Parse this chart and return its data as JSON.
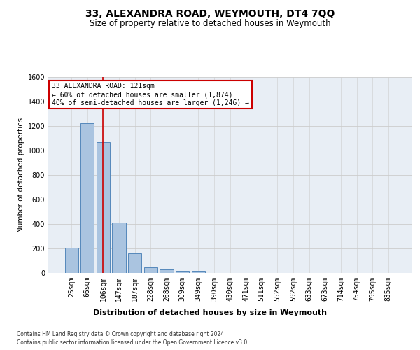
{
  "title": "33, ALEXANDRA ROAD, WEYMOUTH, DT4 7QQ",
  "subtitle": "Size of property relative to detached houses in Weymouth",
  "xlabel": "Distribution of detached houses by size in Weymouth",
  "ylabel": "Number of detached properties",
  "footer_line1": "Contains HM Land Registry data © Crown copyright and database right 2024.",
  "footer_line2": "Contains public sector information licensed under the Open Government Licence v3.0.",
  "categories": [
    "25sqm",
    "66sqm",
    "106sqm",
    "147sqm",
    "187sqm",
    "228sqm",
    "268sqm",
    "309sqm",
    "349sqm",
    "390sqm",
    "430sqm",
    "471sqm",
    "511sqm",
    "552sqm",
    "592sqm",
    "633sqm",
    "673sqm",
    "714sqm",
    "754sqm",
    "795sqm",
    "835sqm"
  ],
  "values": [
    205,
    1225,
    1070,
    410,
    160,
    45,
    27,
    18,
    15,
    0,
    0,
    0,
    0,
    0,
    0,
    0,
    0,
    0,
    0,
    0,
    0
  ],
  "bar_color": "#aac4e0",
  "bar_edge_color": "#5588bb",
  "grid_color": "#cccccc",
  "background_color": "#e8eef5",
  "ylim": [
    0,
    1600
  ],
  "yticks": [
    0,
    200,
    400,
    600,
    800,
    1000,
    1200,
    1400,
    1600
  ],
  "property_bin_index": 2,
  "red_line_color": "#cc0000",
  "annotation_text": "33 ALEXANDRA ROAD: 121sqm\n← 60% of detached houses are smaller (1,874)\n40% of semi-detached houses are larger (1,246) →",
  "annotation_box_color": "#cc0000",
  "title_fontsize": 10,
  "subtitle_fontsize": 8.5,
  "xlabel_fontsize": 8,
  "ylabel_fontsize": 7.5,
  "tick_fontsize": 7,
  "footer_fontsize": 5.5,
  "annot_fontsize": 7
}
